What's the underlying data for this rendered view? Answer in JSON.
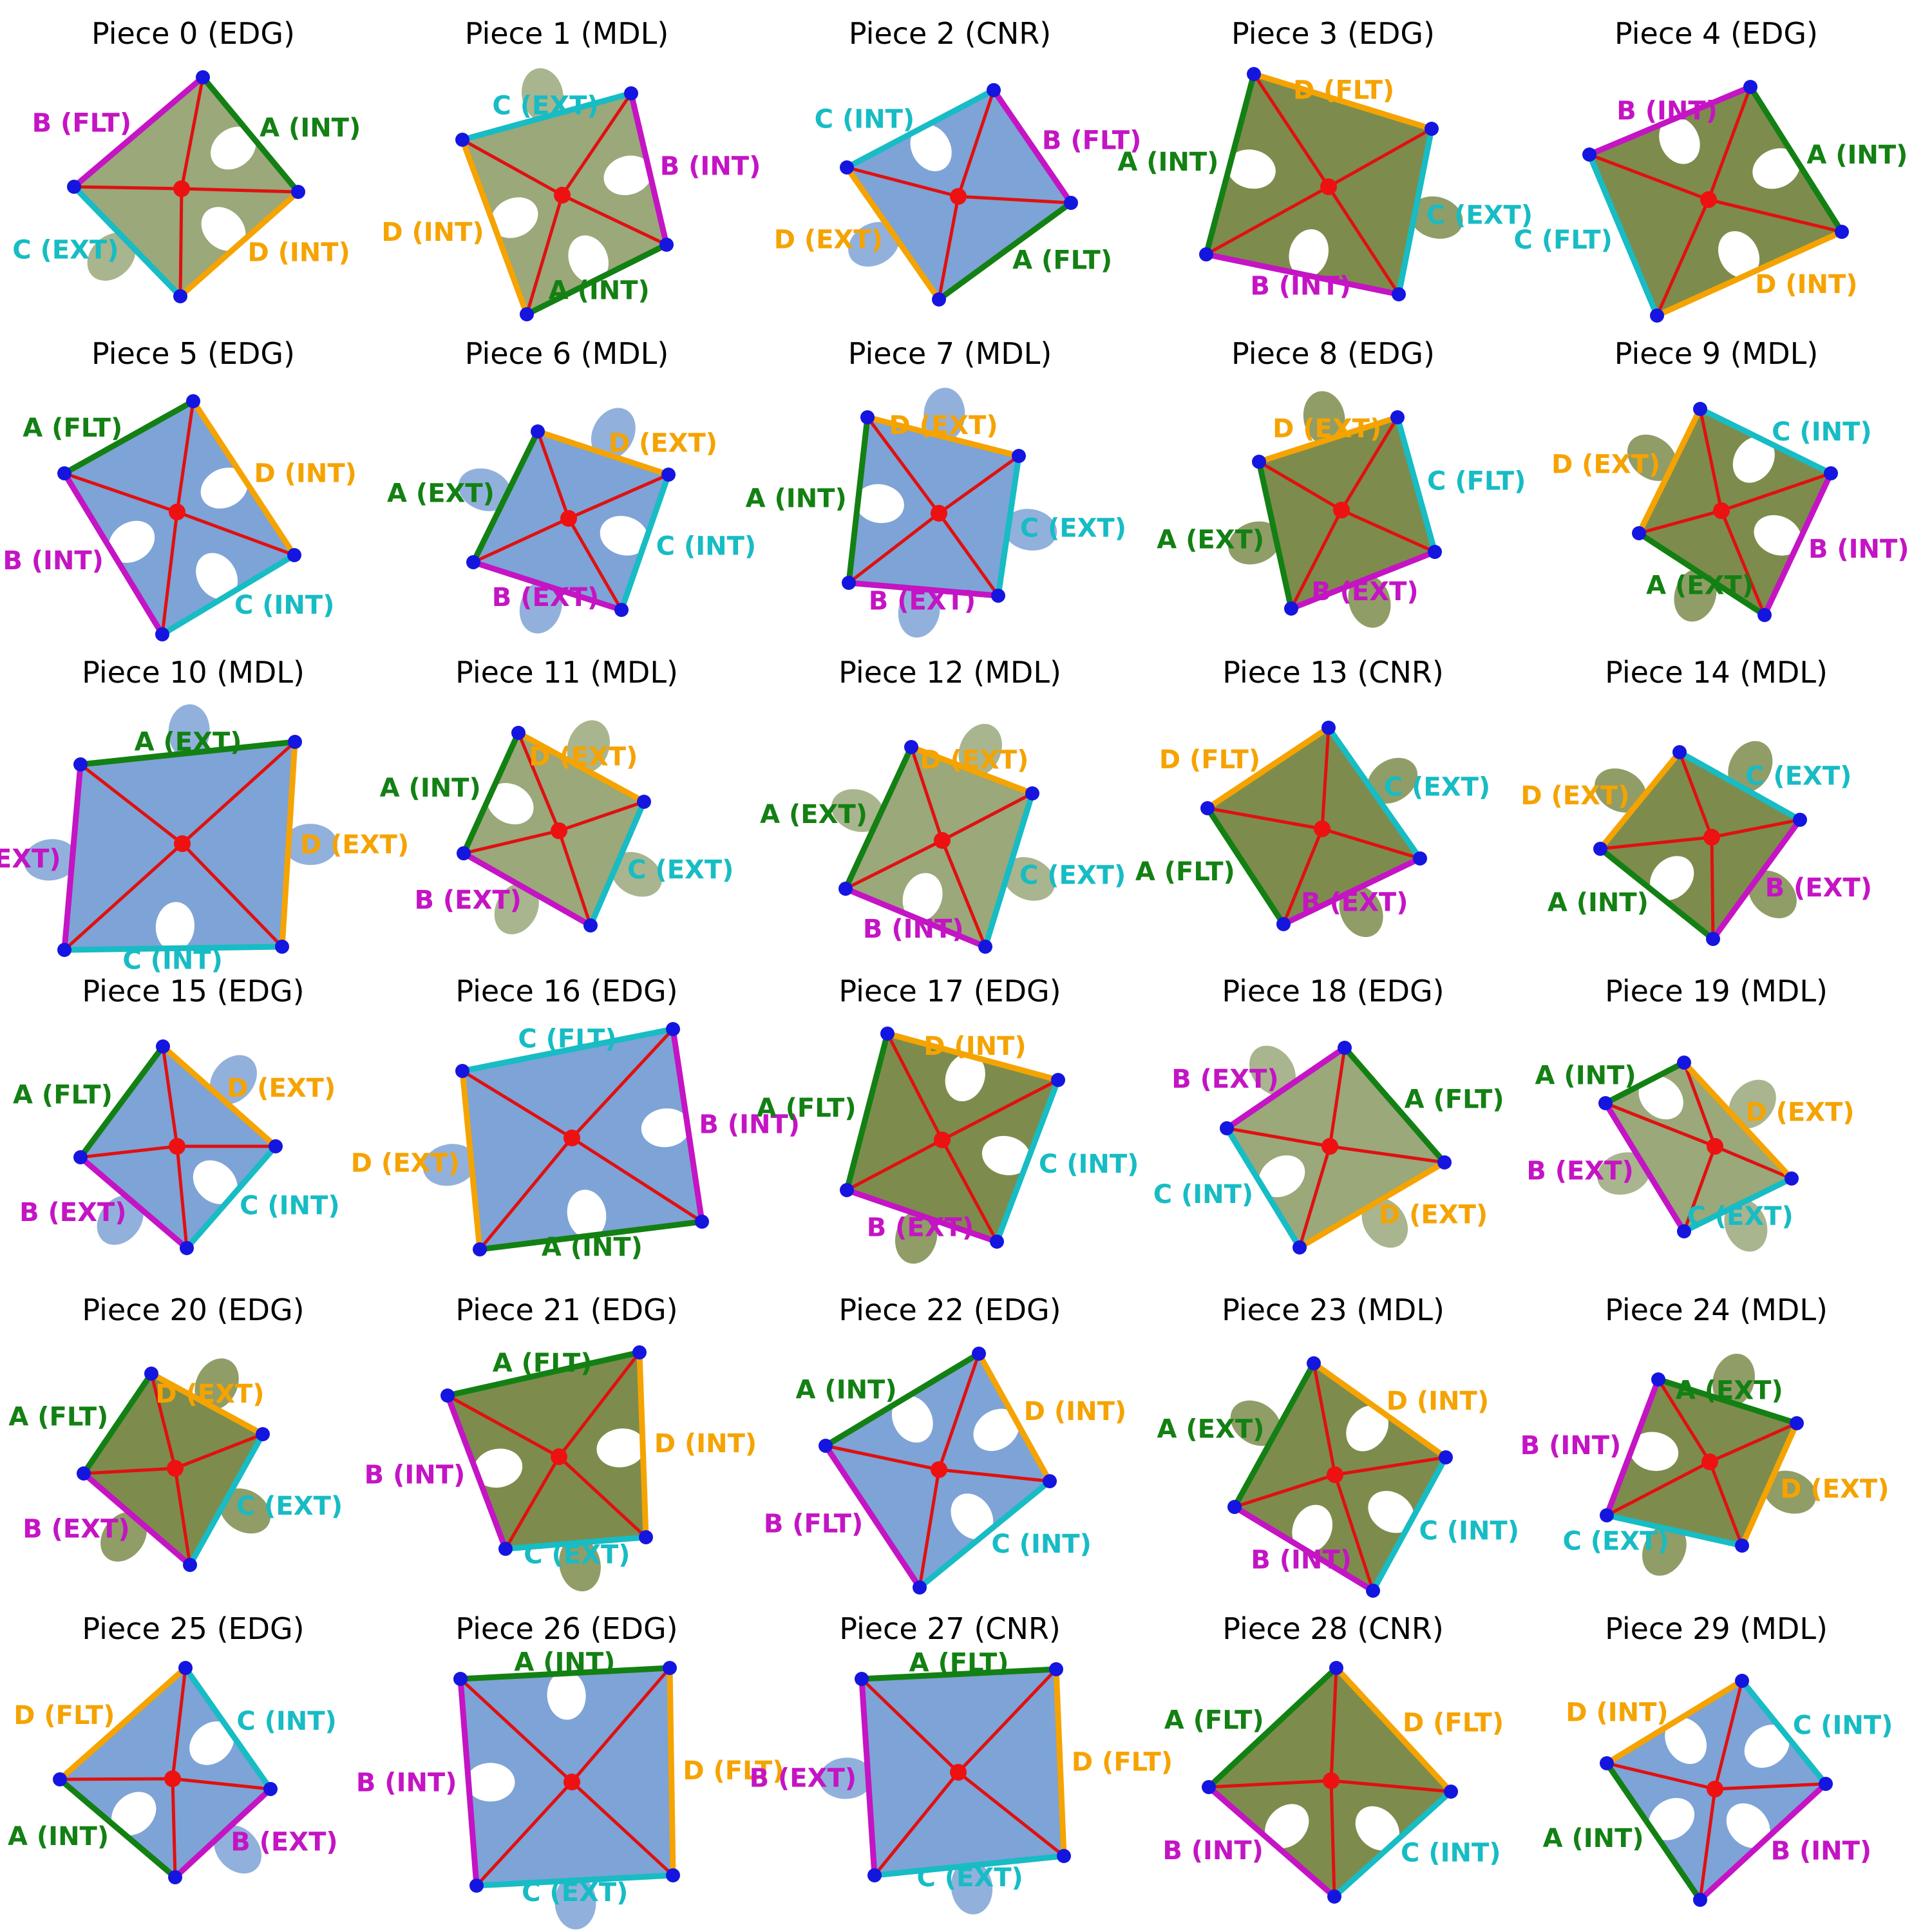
{
  "colors": {
    "A": "#138013",
    "B": "#c414c4",
    "C": "#17bcc4",
    "D": "#f5a300",
    "diagonal": "#e01010",
    "center": "#ee1111",
    "vertex": "#1515e0",
    "sky": "#7ea3d6",
    "grass": "#7d8c4c",
    "mixed": "#9aa87a"
  },
  "pieces": [
    {
      "title": "Piece 0 (EDG)",
      "fill": "mixed",
      "A": "A (INT)",
      "B": "B (FLT)",
      "C": "C (EXT)",
      "D": "D (INT)"
    },
    {
      "title": "Piece 1 (MDL)",
      "fill": "mixed",
      "A": "A (INT)",
      "B": "B (INT)",
      "C": "C (EXT)",
      "D": "D (INT)"
    },
    {
      "title": "Piece 2 (CNR)",
      "fill": "sky",
      "A": "A (FLT)",
      "B": "B (FLT)",
      "C": "C (INT)",
      "D": "D (EXT)"
    },
    {
      "title": "Piece 3 (EDG)",
      "fill": "grass",
      "A": "A (INT)",
      "B": "B (INT)",
      "C": "C (EXT)",
      "D": "D (FLT)"
    },
    {
      "title": "Piece 4 (EDG)",
      "fill": "grass",
      "A": "A (INT)",
      "B": "B (INT)",
      "C": "C (FLT)",
      "D": "D (INT)"
    },
    {
      "title": "Piece 5 (EDG)",
      "fill": "sky",
      "A": "A (FLT)",
      "B": "B (INT)",
      "C": "C (INT)",
      "D": "D (INT)"
    },
    {
      "title": "Piece 6 (MDL)",
      "fill": "sky",
      "A": "A (EXT)",
      "B": "B (EXT)",
      "C": "C (INT)",
      "D": "D (EXT)"
    },
    {
      "title": "Piece 7 (MDL)",
      "fill": "sky",
      "A": "A (INT)",
      "B": "B (EXT)",
      "C": "C (EXT)",
      "D": "D (EXT)"
    },
    {
      "title": "Piece 8 (EDG)",
      "fill": "grass",
      "A": "A (EXT)",
      "B": "B (EXT)",
      "C": "C (FLT)",
      "D": "D (EXT)"
    },
    {
      "title": "Piece 9 (MDL)",
      "fill": "grass",
      "A": "A (EXT)",
      "B": "B (INT)",
      "C": "C (INT)",
      "D": "D (EXT)"
    },
    {
      "title": "Piece 10 (MDL)",
      "fill": "sky",
      "A": "A (EXT)",
      "B": "B (EXT)",
      "C": "C (INT)",
      "D": "D (EXT)"
    },
    {
      "title": "Piece 11 (MDL)",
      "fill": "mixed",
      "A": "A (INT)",
      "B": "B (EXT)",
      "C": "C (EXT)",
      "D": "D (EXT)"
    },
    {
      "title": "Piece 12 (MDL)",
      "fill": "mixed",
      "A": "A (EXT)",
      "B": "B (INT)",
      "C": "C (EXT)",
      "D": "D (EXT)"
    },
    {
      "title": "Piece 13 (CNR)",
      "fill": "grass",
      "A": "A (FLT)",
      "B": "B (EXT)",
      "C": "C (EXT)",
      "D": "D (FLT)"
    },
    {
      "title": "Piece 14 (MDL)",
      "fill": "grass",
      "A": "A (INT)",
      "B": "B (EXT)",
      "C": "C (EXT)",
      "D": "D (EXT)"
    },
    {
      "title": "Piece 15 (EDG)",
      "fill": "sky",
      "A": "A (FLT)",
      "B": "B (EXT)",
      "C": "C (INT)",
      "D": "D (EXT)"
    },
    {
      "title": "Piece 16 (EDG)",
      "fill": "sky",
      "A": "A (INT)",
      "B": "B (INT)",
      "C": "C (FLT)",
      "D": "D (EXT)"
    },
    {
      "title": "Piece 17 (EDG)",
      "fill": "grass",
      "A": "A (FLT)",
      "B": "B (EXT)",
      "C": "C (INT)",
      "D": "D (INT)"
    },
    {
      "title": "Piece 18 (EDG)",
      "fill": "mixed",
      "A": "A (FLT)",
      "B": "B (EXT)",
      "C": "C (INT)",
      "D": "D (EXT)"
    },
    {
      "title": "Piece 19 (MDL)",
      "fill": "mixed",
      "A": "A (INT)",
      "B": "B (EXT)",
      "C": "C (EXT)",
      "D": "D (EXT)"
    },
    {
      "title": "Piece 20 (EDG)",
      "fill": "grass",
      "A": "A (FLT)",
      "B": "B (EXT)",
      "C": "C (EXT)",
      "D": "D (EXT)"
    },
    {
      "title": "Piece 21 (EDG)",
      "fill": "grass",
      "A": "A (FLT)",
      "B": "B (INT)",
      "C": "C (EXT)",
      "D": "D (INT)"
    },
    {
      "title": "Piece 22 (EDG)",
      "fill": "sky",
      "A": "A (INT)",
      "B": "B (FLT)",
      "C": "C (INT)",
      "D": "D (INT)"
    },
    {
      "title": "Piece 23 (MDL)",
      "fill": "grass",
      "A": "A (EXT)",
      "B": "B (INT)",
      "C": "C (INT)",
      "D": "D (INT)"
    },
    {
      "title": "Piece 24 (MDL)",
      "fill": "grass",
      "A": "A (EXT)",
      "B": "B (INT)",
      "C": "C (EXT)",
      "D": "D (EXT)"
    },
    {
      "title": "Piece 25 (EDG)",
      "fill": "sky",
      "A": "A (INT)",
      "B": "B (EXT)",
      "C": "C (INT)",
      "D": "D (FLT)"
    },
    {
      "title": "Piece 26 (EDG)",
      "fill": "sky",
      "A": "A (INT)",
      "B": "B (INT)",
      "C": "C (EXT)",
      "D": "D (FLT)"
    },
    {
      "title": "Piece 27 (CNR)",
      "fill": "sky",
      "A": "A (FLT)",
      "B": "B (EXT)",
      "C": "C (EXT)",
      "D": "D (FLT)"
    },
    {
      "title": "Piece 28 (CNR)",
      "fill": "grass",
      "A": "A (FLT)",
      "B": "B (INT)",
      "C": "C (INT)",
      "D": "D (FLT)"
    },
    {
      "title": "Piece 29 (MDL)",
      "fill": "sky",
      "A": "A (INT)",
      "B": "B (INT)",
      "C": "C (INT)",
      "D": "D (INT)"
    }
  ]
}
